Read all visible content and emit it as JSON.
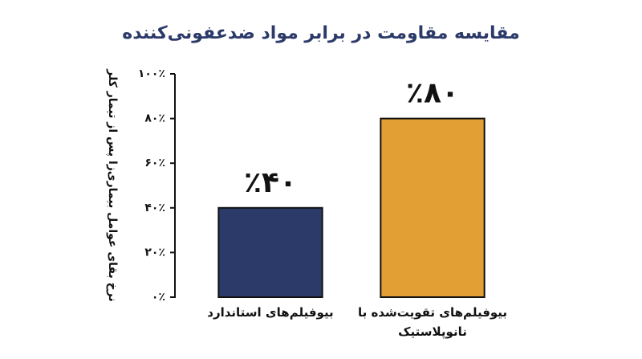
{
  "chart_data": {
    "type": "bar",
    "title": "مقایسه مقاومت در برابر مواد ضدعفونی‌کننده",
    "y_label": "نرخ بقای عوامل بیماری‌زا پس از تیمار کلر",
    "categories": [
      "بیوفیلم‌های استاندارد",
      "بیوفیلم‌های تقویت‌شده با نانوپلاستیک"
    ],
    "values": [
      40,
      80
    ],
    "value_labels": [
      "٪۴۰",
      "٪۸۰"
    ],
    "colors": [
      "#2c3a6a",
      "#e29f34"
    ],
    "ylim": [
      0,
      100
    ],
    "yticks": [
      {
        "value": 0,
        "label": "۰٪"
      },
      {
        "value": 20,
        "label": "۲۰٪"
      },
      {
        "value": 40,
        "label": "۴۰٪"
      },
      {
        "value": 60,
        "label": "۶۰٪"
      },
      {
        "value": 80,
        "label": "۸۰٪"
      },
      {
        "value": 100,
        "label": "۱۰۰٪"
      }
    ],
    "grid": false
  }
}
